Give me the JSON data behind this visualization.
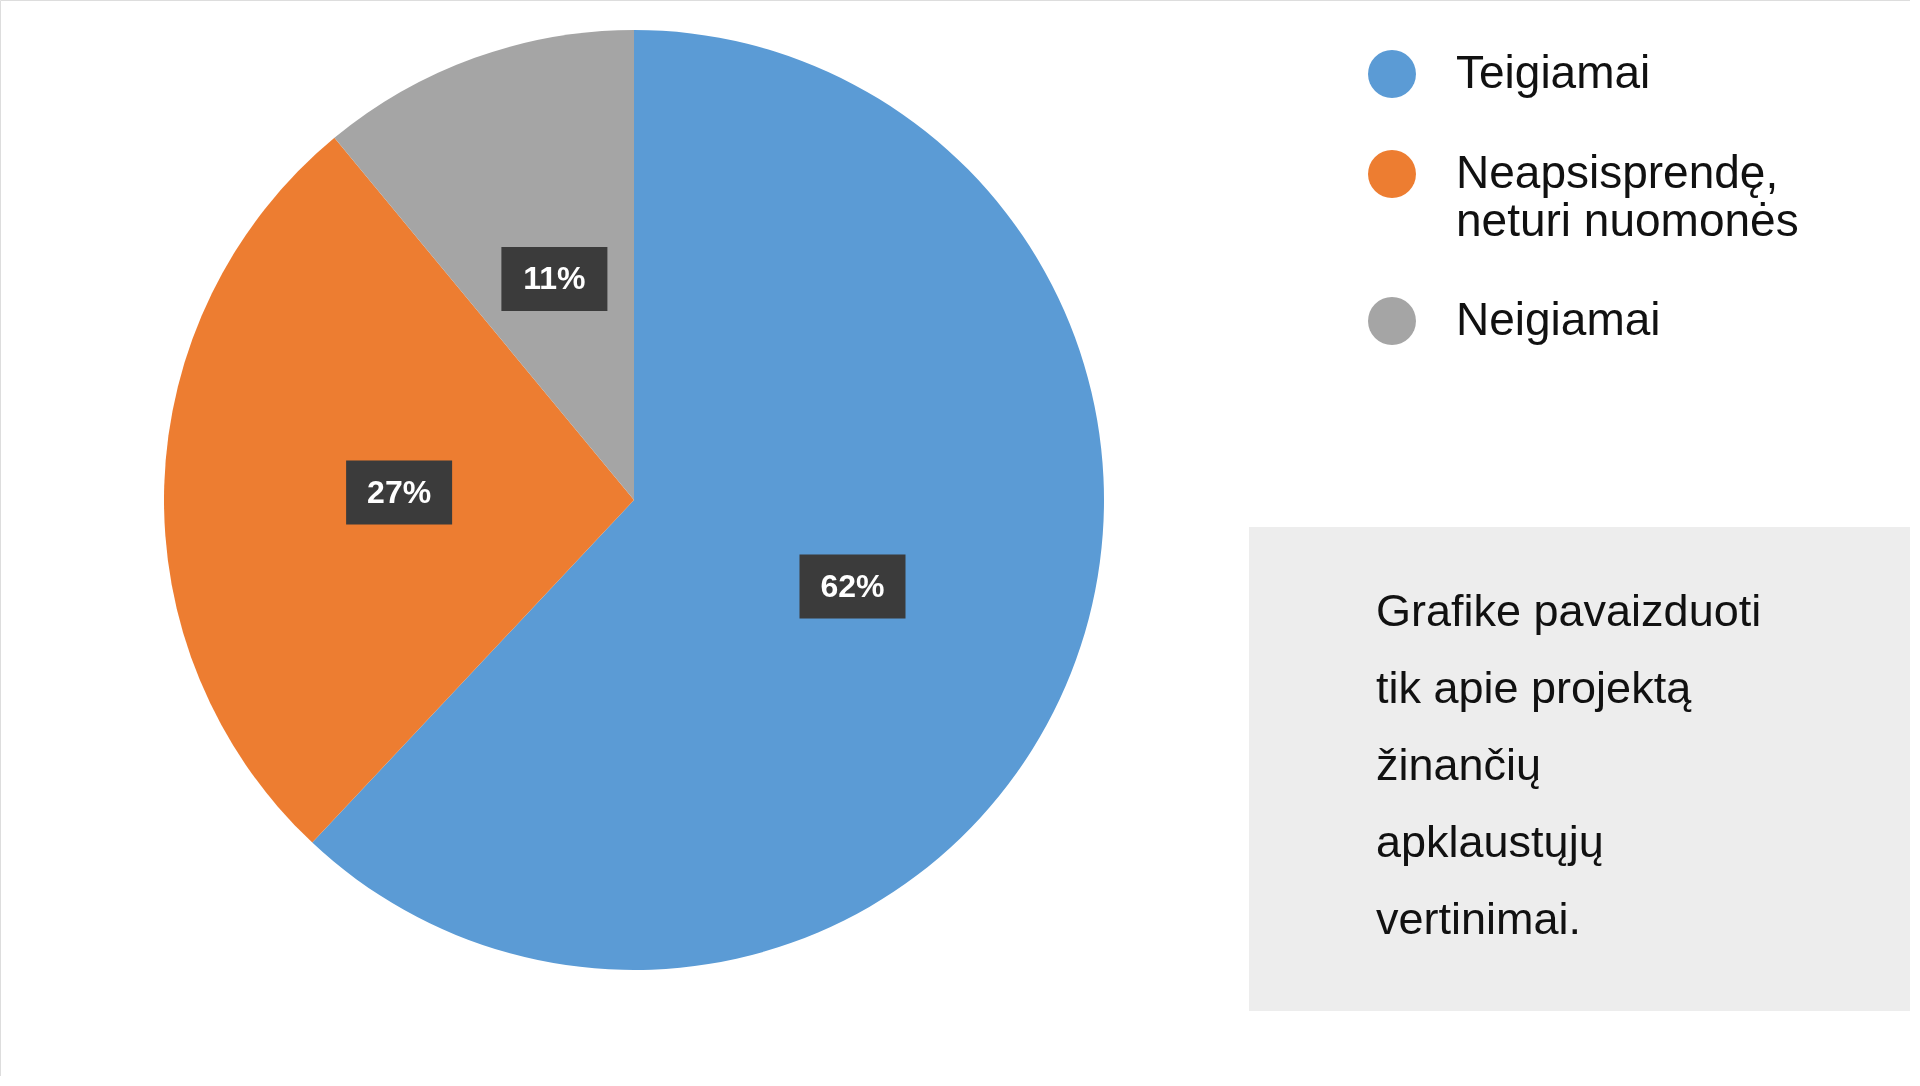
{
  "chart_data": {
    "type": "pie",
    "categories": [
      "Teigiamai",
      "Neapsisprendę, neturi nuomonės",
      "Neigiamai"
    ],
    "values": [
      62,
      27,
      11
    ],
    "colors": [
      "#5b9bd5",
      "#ed7d31",
      "#a5a5a5"
    ],
    "value_labels": [
      "62%",
      "27%",
      "11%"
    ],
    "legend": "top right",
    "annotations": [
      "Grafike pavaizduoti tik apie projektą žinančių apklaustųjų vertinimai."
    ]
  }
}
